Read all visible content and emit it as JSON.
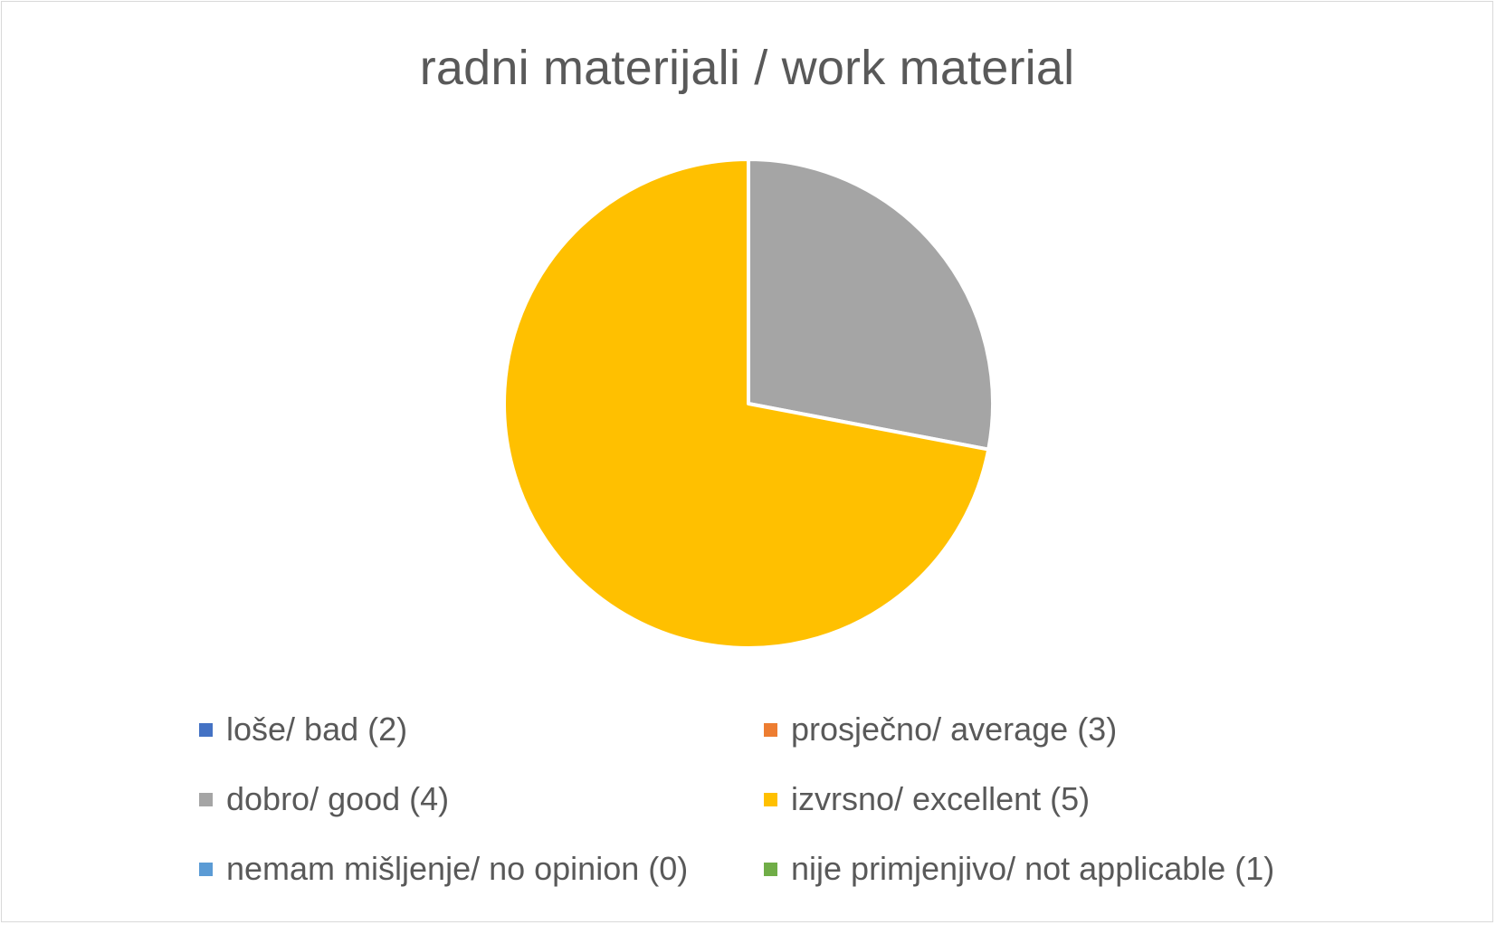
{
  "chart_data": {
    "type": "pie",
    "title": "radni materijali / work material",
    "legend_position": "bottom",
    "slices": [
      {
        "label": "loše/ bad (2)",
        "value": 0,
        "color": "#4472C4"
      },
      {
        "label": "prosječno/ average (3)",
        "value": 0,
        "color": "#ED7D31"
      },
      {
        "label": "dobro/ good (4)",
        "value": 28,
        "color": "#A5A5A5"
      },
      {
        "label": "izvrsno/ excellent (5)",
        "value": 72,
        "color": "#FFC000"
      },
      {
        "label": "nemam mišljenje/ no opinion (0)",
        "value": 0,
        "color": "#5B9BD5"
      },
      {
        "label": "nije primjenjivo/ not applicable (1)",
        "value": 0,
        "color": "#70AD47"
      }
    ]
  }
}
